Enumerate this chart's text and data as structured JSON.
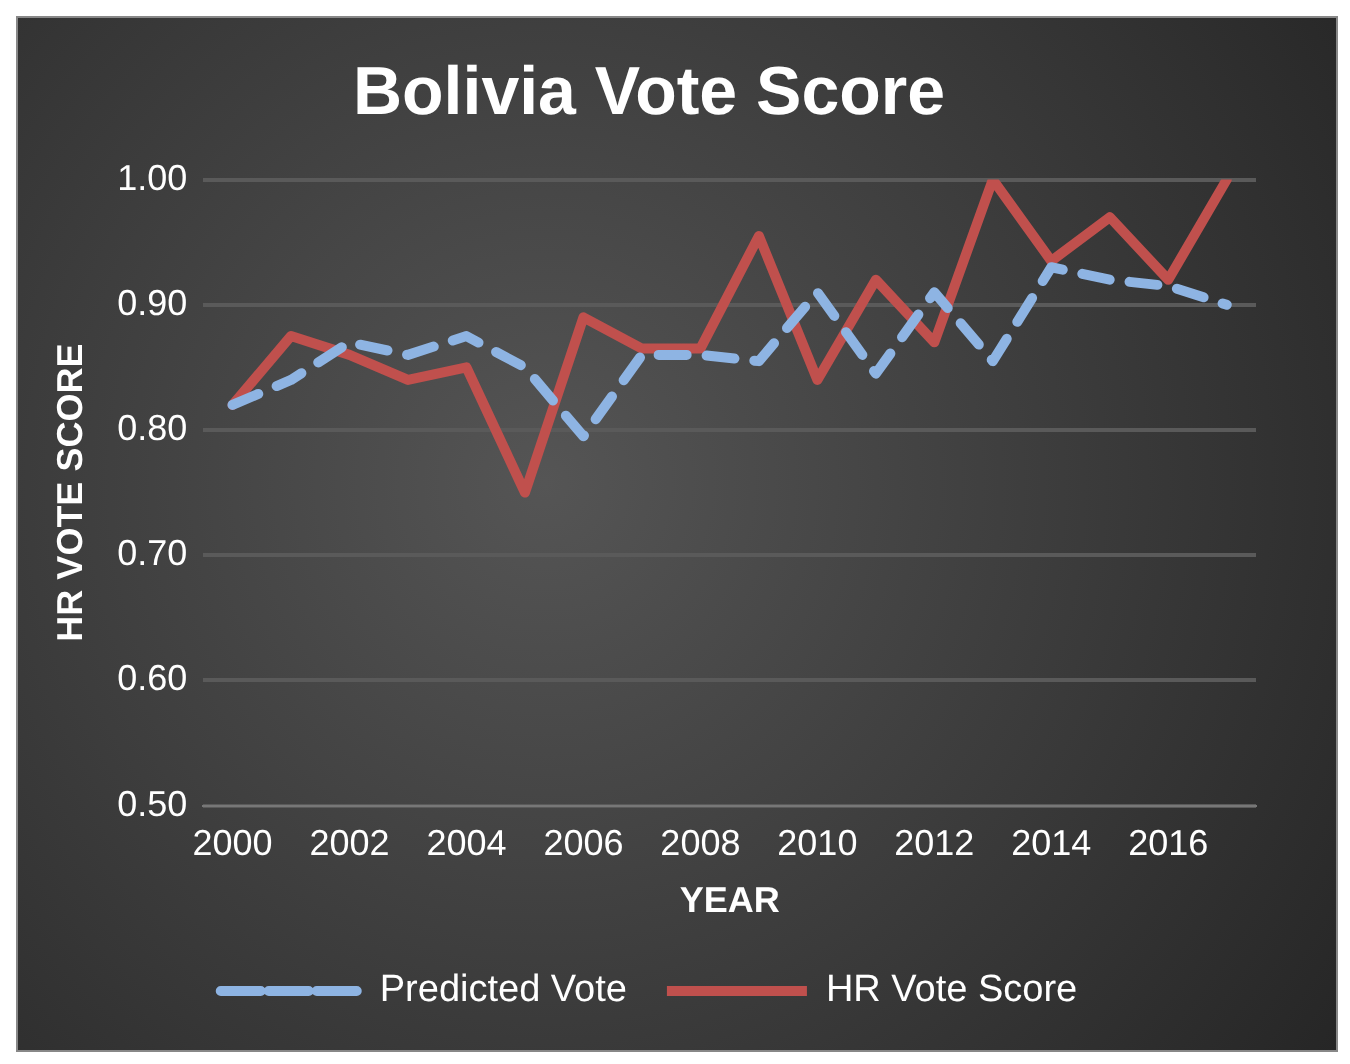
{
  "chart_data": {
    "type": "line",
    "title": "Bolivia Vote Score",
    "xlabel": "YEAR",
    "ylabel": "HR VOTE SCORE",
    "categories": [
      "2000",
      null,
      "2002",
      null,
      "2004",
      null,
      "2006",
      null,
      "2008",
      null,
      "2010",
      null,
      "2012",
      null,
      "2014",
      null,
      "2016",
      null
    ],
    "series": [
      {
        "name": "Predicted Vote",
        "color": "#8eb4e3",
        "line_style": "dashed",
        "values": [
          0.82,
          0.84,
          0.87,
          0.86,
          0.875,
          0.85,
          0.795,
          0.86,
          0.86,
          0.855,
          0.91,
          0.845,
          0.91,
          0.855,
          0.93,
          0.92,
          0.915,
          0.9
        ]
      },
      {
        "name": "HR Vote Score",
        "color": "#c0504d",
        "line_style": "solid",
        "values": [
          0.82,
          0.875,
          0.86,
          0.84,
          0.85,
          0.75,
          0.89,
          0.865,
          0.865,
          0.955,
          0.84,
          0.92,
          0.87,
          1.0,
          0.935,
          0.97,
          0.92,
          1.0
        ]
      }
    ],
    "ylim": [
      0.5,
      1.0
    ],
    "yticks": [
      {
        "value": 0.5,
        "label": "0.50"
      },
      {
        "value": 0.6,
        "label": "0.60"
      },
      {
        "value": 0.7,
        "label": "0.70"
      },
      {
        "value": 0.8,
        "label": "0.80"
      },
      {
        "value": 0.9,
        "label": "0.90"
      },
      {
        "value": 1.0,
        "label": "1.00"
      }
    ],
    "grid": "y",
    "legend": "bottom",
    "marker": "none"
  }
}
